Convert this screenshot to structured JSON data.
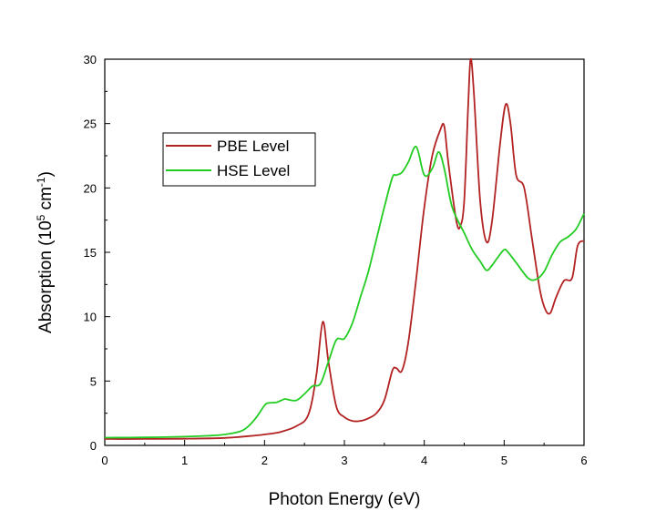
{
  "chart_data": {
    "type": "line",
    "title": "",
    "xlabel": "Photon Energy (eV)",
    "ylabel": {
      "base": "Absorption (10",
      "sup1": "5",
      "mid": " cm",
      "sup2": "-1",
      "end": ")"
    },
    "xlim": [
      0,
      6
    ],
    "ylim": [
      0,
      30
    ],
    "xticks": [
      0,
      1,
      2,
      3,
      4,
      5,
      6
    ],
    "yticks": [
      0,
      5,
      10,
      15,
      20,
      25,
      30
    ],
    "grid": false,
    "legend_position": "upper-left",
    "series": [
      {
        "name": "PBE Level",
        "color": "#b22222",
        "x": [
          0,
          0.5,
          1.0,
          1.5,
          1.8,
          2.0,
          2.2,
          2.4,
          2.55,
          2.65,
          2.73,
          2.8,
          2.9,
          3.0,
          3.1,
          3.2,
          3.3,
          3.4,
          3.5,
          3.6,
          3.65,
          3.72,
          3.8,
          3.9,
          4.0,
          4.1,
          4.2,
          4.25,
          4.3,
          4.4,
          4.45,
          4.5,
          4.55,
          4.58,
          4.62,
          4.7,
          4.78,
          4.85,
          4.95,
          5.02,
          5.08,
          5.15,
          5.25,
          5.35,
          5.45,
          5.52,
          5.58,
          5.65,
          5.75,
          5.85,
          5.92,
          6.0
        ],
        "y": [
          0.5,
          0.5,
          0.52,
          0.58,
          0.72,
          0.85,
          1.05,
          1.5,
          2.4,
          5.5,
          9.6,
          6.5,
          3.0,
          2.2,
          1.9,
          1.9,
          2.1,
          2.5,
          3.5,
          5.8,
          6.0,
          5.8,
          8.0,
          13.0,
          18.5,
          22.5,
          24.5,
          24.8,
          22.0,
          17.5,
          17.0,
          19.0,
          26.5,
          30.0,
          27.5,
          19.0,
          15.8,
          17.5,
          23.5,
          26.5,
          25.0,
          21.0,
          20.0,
          16.0,
          12.0,
          10.5,
          10.3,
          11.5,
          12.8,
          13.0,
          15.5,
          15.9
        ]
      },
      {
        "name": "HSE Level",
        "color": "#22cc22",
        "x": [
          0,
          0.5,
          1.0,
          1.3,
          1.5,
          1.7,
          1.8,
          1.9,
          2.0,
          2.05,
          2.15,
          2.25,
          2.3,
          2.4,
          2.5,
          2.6,
          2.7,
          2.8,
          2.9,
          3.0,
          3.1,
          3.2,
          3.3,
          3.4,
          3.5,
          3.6,
          3.65,
          3.72,
          3.8,
          3.9,
          4.0,
          4.1,
          4.18,
          4.25,
          4.35,
          4.5,
          4.6,
          4.7,
          4.78,
          4.85,
          4.92,
          5.0,
          5.05,
          5.15,
          5.3,
          5.4,
          5.5,
          5.6,
          5.7,
          5.8,
          5.9,
          6.0
        ],
        "y": [
          0.6,
          0.62,
          0.68,
          0.75,
          0.85,
          1.1,
          1.5,
          2.2,
          3.1,
          3.3,
          3.35,
          3.6,
          3.55,
          3.5,
          4.0,
          4.6,
          4.8,
          6.5,
          8.2,
          8.3,
          9.5,
          11.5,
          13.5,
          16.0,
          18.5,
          20.8,
          21.0,
          21.2,
          22.0,
          23.2,
          21.0,
          21.5,
          22.8,
          21.5,
          18.5,
          16.5,
          15.2,
          14.3,
          13.6,
          14.0,
          14.6,
          15.2,
          15.0,
          14.2,
          13.0,
          12.9,
          13.5,
          14.8,
          15.8,
          16.2,
          16.8,
          18.0
        ]
      }
    ]
  }
}
